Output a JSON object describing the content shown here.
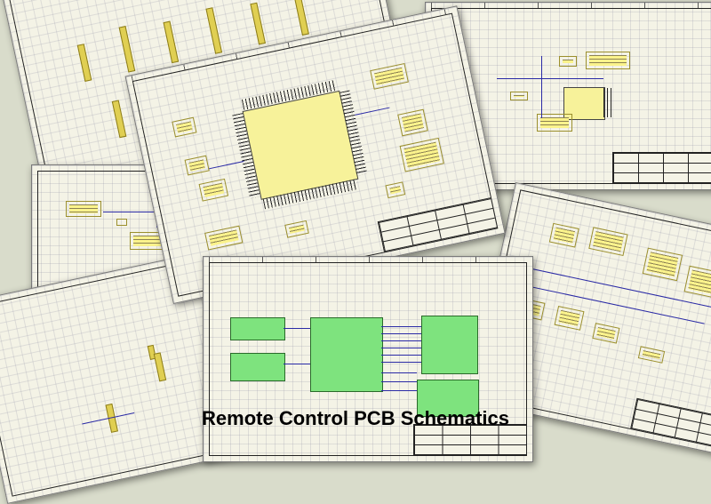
{
  "caption": "Remote Control PCB Schematics",
  "colors": {
    "background": "#d9dccb",
    "sheet": "#f4f3e6",
    "note_yellow": "#fbf38c",
    "component_yellow": "#f7f29a",
    "block_green": "#7ee37e",
    "wire_blue": "#2a2aa6"
  },
  "sheets": [
    {
      "name": "top-left-sheet"
    },
    {
      "name": "top-right-sheet"
    },
    {
      "name": "mid-left-sheet"
    },
    {
      "name": "center-mcu-sheet"
    },
    {
      "name": "right-sheet"
    },
    {
      "name": "bottom-left-sheet"
    },
    {
      "name": "bottom-center-block-sheet"
    }
  ]
}
